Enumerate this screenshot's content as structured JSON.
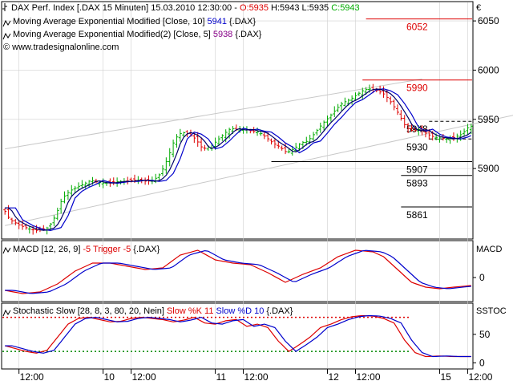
{
  "colors": {
    "bull": "#00aa00",
    "bear": "#dd0000",
    "ma10": "#0000cc",
    "ma5": "#000066",
    "channel": "#c8c8c8",
    "level_red": "#dd0000",
    "level_black": "#000000",
    "macd": "#dd0000",
    "trigger": "#0000cc",
    "overbought": "#dd0000",
    "oversold": "#008800",
    "grid": "#d0d0d0"
  },
  "header": {
    "currency": "€",
    "legend_prefix": "DAX Perf. Index [.DAX  15 Minuten] 15.03.2010 12:30:00 - ",
    "open": "O:5935",
    "high": "H:5943",
    "low": "L:5935",
    "close": "C:5943",
    "ma10_label": "Moving Average Exponential Modified [Close, 10]",
    "ma10_value": "5941",
    "ma10_suffix": "{.DAX}",
    "ma5_label": "Moving Average Exponential Modified(2) [Close, 5]",
    "ma5_value": "5938",
    "ma5_suffix": "{.DAX}",
    "copyright": "© www.tradesignalonline.com"
  },
  "macd_panel": {
    "label": "MACD [12, 26, 9]",
    "trigger_text": "-5 Trigger -5",
    "suffix": "{.DAX}",
    "axis_title": "MACD",
    "zero_label": "0"
  },
  "stoch_panel": {
    "label": "Stochastic Slow [28, 8, 3, 80, 20, Nein]",
    "k_text": "Slow %K 11",
    "d_text": "Slow %D 10",
    "suffix": "{.DAX}",
    "axis_title": "SSTOC",
    "tick_50": "50",
    "tick_0": "0"
  },
  "chart_data": {
    "type": "candlestick",
    "yticks": [
      5900,
      5950,
      6000,
      6050
    ],
    "ytick_labels": [
      "5900",
      "5950",
      "6000",
      "6050"
    ],
    "ylim": [
      5830,
      6068
    ],
    "xticks": [
      {
        "bar": 4,
        "label": "12:00"
      },
      {
        "bar": 28,
        "label": "10"
      },
      {
        "bar": 36,
        "label": "12:00"
      },
      {
        "bar": 60,
        "label": "11"
      },
      {
        "bar": 68,
        "label": "12:00"
      },
      {
        "bar": 92,
        "label": "12"
      },
      {
        "bar": 100,
        "label": "12:00"
      },
      {
        "bar": 124,
        "label": "15"
      },
      {
        "bar": 132,
        "label": "12:00"
      }
    ],
    "levels": [
      {
        "value": 6052,
        "label": "6052",
        "color": "red",
        "x_from_bar": 103
      },
      {
        "value": 5990,
        "label": "5990",
        "color": "red",
        "x_from_bar": 102
      },
      {
        "value": 5948,
        "label": "5948",
        "color": "black",
        "style": "dashed",
        "x_from_bar": 121
      },
      {
        "value": 5930,
        "label": "5930",
        "color": "black",
        "style": "dashed",
        "x_from_bar": 121
      },
      {
        "value": 5907,
        "label": "5907",
        "color": "black",
        "x_from_bar": 76
      },
      {
        "value": 5893,
        "label": "5893",
        "color": "black",
        "x_from_bar": 113
      },
      {
        "value": 5861,
        "label": "5861",
        "color": "black",
        "x_from_bar": 113
      }
    ],
    "channel": {
      "upper": [
        [
          0,
          5920
        ],
        [
          119,
          5991
        ]
      ],
      "lower": [
        [
          0,
          5842
        ],
        [
          150,
          5958
        ]
      ]
    },
    "close_path": [
      [
        0,
        5860
      ],
      [
        2,
        5848
      ],
      [
        5,
        5842
      ],
      [
        8,
        5838
      ],
      [
        10,
        5837
      ],
      [
        13,
        5840
      ],
      [
        15,
        5852
      ],
      [
        17,
        5870
      ],
      [
        19,
        5877
      ],
      [
        21,
        5881
      ],
      [
        23,
        5884
      ],
      [
        25,
        5888
      ],
      [
        27,
        5886
      ],
      [
        29,
        5885
      ],
      [
        31,
        5886
      ],
      [
        33,
        5887
      ],
      [
        35,
        5887
      ],
      [
        37,
        5888
      ],
      [
        39,
        5888
      ],
      [
        41,
        5887
      ],
      [
        43,
        5888
      ],
      [
        45,
        5895
      ],
      [
        47,
        5910
      ],
      [
        49,
        5930
      ],
      [
        51,
        5937
      ],
      [
        53,
        5935
      ],
      [
        55,
        5930
      ],
      [
        57,
        5920
      ],
      [
        59,
        5922
      ],
      [
        61,
        5928
      ],
      [
        63,
        5935
      ],
      [
        65,
        5941
      ],
      [
        67,
        5939
      ],
      [
        69,
        5940
      ],
      [
        71,
        5938
      ],
      [
        73,
        5937
      ],
      [
        75,
        5932
      ],
      [
        77,
        5926
      ],
      [
        79,
        5922
      ],
      [
        81,
        5916
      ],
      [
        83,
        5920
      ],
      [
        85,
        5926
      ],
      [
        87,
        5928
      ],
      [
        89,
        5936
      ],
      [
        91,
        5945
      ],
      [
        93,
        5952
      ],
      [
        95,
        5960
      ],
      [
        97,
        5967
      ],
      [
        99,
        5970
      ],
      [
        101,
        5975
      ],
      [
        103,
        5980
      ],
      [
        105,
        5981
      ],
      [
        107,
        5979
      ],
      [
        109,
        5975
      ],
      [
        111,
        5966
      ],
      [
        113,
        5955
      ],
      [
        115,
        5942
      ],
      [
        117,
        5938
      ],
      [
        119,
        5940
      ],
      [
        121,
        5935
      ],
      [
        123,
        5932
      ],
      [
        125,
        5931
      ],
      [
        127,
        5930
      ],
      [
        129,
        5932
      ],
      [
        131,
        5935
      ],
      [
        133,
        5943
      ]
    ],
    "ma_lag": {
      "ma10": 3,
      "ma5": 1.5
    },
    "macd": {
      "ylim": [
        -14,
        22
      ],
      "zero": 0,
      "path": [
        [
          0,
          -8
        ],
        [
          5,
          -10
        ],
        [
          10,
          -9
        ],
        [
          15,
          -4
        ],
        [
          20,
          4
        ],
        [
          25,
          9
        ],
        [
          30,
          9
        ],
        [
          35,
          7
        ],
        [
          40,
          5
        ],
        [
          45,
          6
        ],
        [
          50,
          14
        ],
        [
          55,
          17
        ],
        [
          60,
          11
        ],
        [
          65,
          9
        ],
        [
          70,
          8
        ],
        [
          75,
          3
        ],
        [
          80,
          -3
        ],
        [
          85,
          2
        ],
        [
          90,
          6
        ],
        [
          95,
          13
        ],
        [
          100,
          17
        ],
        [
          105,
          16
        ],
        [
          108,
          13
        ],
        [
          112,
          5
        ],
        [
          116,
          -3
        ],
        [
          120,
          -6
        ],
        [
          124,
          -7
        ],
        [
          128,
          -6
        ],
        [
          133,
          -5
        ]
      ],
      "trigger_lag": 2.5
    },
    "stochastic": {
      "ylim": [
        -8,
        102
      ],
      "overbought": 80,
      "oversold": 20,
      "k": [
        [
          0,
          30
        ],
        [
          3,
          25
        ],
        [
          6,
          20
        ],
        [
          9,
          17
        ],
        [
          12,
          22
        ],
        [
          15,
          45
        ],
        [
          18,
          68
        ],
        [
          21,
          78
        ],
        [
          24,
          80
        ],
        [
          27,
          76
        ],
        [
          30,
          72
        ],
        [
          33,
          73
        ],
        [
          36,
          78
        ],
        [
          39,
          80
        ],
        [
          42,
          78
        ],
        [
          45,
          76
        ],
        [
          48,
          72
        ],
        [
          51,
          75
        ],
        [
          54,
          80
        ],
        [
          57,
          70
        ],
        [
          60,
          68
        ],
        [
          63,
          74
        ],
        [
          66,
          76
        ],
        [
          69,
          64
        ],
        [
          72,
          68
        ],
        [
          75,
          62
        ],
        [
          78,
          38
        ],
        [
          81,
          20
        ],
        [
          84,
          32
        ],
        [
          87,
          45
        ],
        [
          90,
          62
        ],
        [
          93,
          68
        ],
        [
          96,
          76
        ],
        [
          99,
          81
        ],
        [
          102,
          83
        ],
        [
          105,
          82
        ],
        [
          108,
          78
        ],
        [
          111,
          70
        ],
        [
          114,
          40
        ],
        [
          117,
          18
        ],
        [
          120,
          11
        ],
        [
          124,
          12
        ],
        [
          128,
          11
        ],
        [
          133,
          11
        ]
      ],
      "d_lag": 2
    },
    "bars_count": 134
  }
}
